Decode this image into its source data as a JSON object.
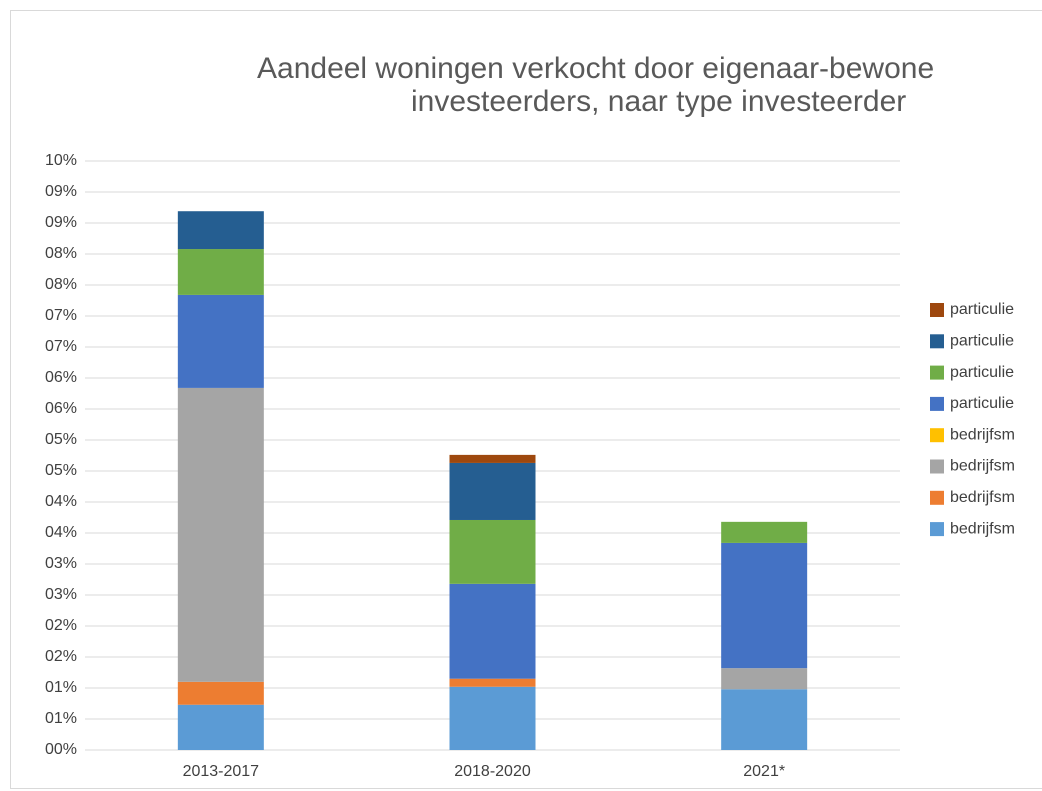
{
  "chart_data": {
    "type": "stacked-bar",
    "title": [
      "Aandeel woningen verkocht door eigenaar-bewone",
      "investeerders, naar type investeerder"
    ],
    "categories": [
      "2013-2017",
      "2018-2020",
      "2021*"
    ],
    "series": [
      {
        "name": "bedrijfsm",
        "color": "#5b9bd5",
        "values": [
          0.73,
          1.02,
          0.98
        ]
      },
      {
        "name": "bedrijfsm",
        "color": "#ed7d31",
        "values": [
          0.37,
          0.13,
          0
        ]
      },
      {
        "name": "bedrijfsm",
        "color": "#a5a5a5",
        "values": [
          4.74,
          0,
          0.34
        ]
      },
      {
        "name": "bedrijfsm",
        "color": "#ffc000",
        "values": [
          0,
          0,
          0
        ]
      },
      {
        "name": "particulie",
        "color": "#4472c4",
        "values": [
          1.5,
          1.53,
          2.02
        ]
      },
      {
        "name": "particulie",
        "color": "#70ad47",
        "values": [
          0.74,
          1.03,
          0.34
        ]
      },
      {
        "name": "particulie",
        "color": "#255e91",
        "values": [
          0.61,
          0.92,
          0
        ]
      },
      {
        "name": "particulie",
        "color": "#9e480e",
        "values": [
          0,
          0.13,
          0
        ]
      }
    ],
    "ylim": [
      0,
      9.5
    ],
    "yticks": [
      {
        "value": 0,
        "label": "00%"
      },
      {
        "value": 0.5,
        "label": "01%"
      },
      {
        "value": 1,
        "label": "01%"
      },
      {
        "value": 1.5,
        "label": "02%"
      },
      {
        "value": 2,
        "label": "02%"
      },
      {
        "value": 2.5,
        "label": "03%"
      },
      {
        "value": 3,
        "label": "03%"
      },
      {
        "value": 3.5,
        "label": "04%"
      },
      {
        "value": 4,
        "label": "04%"
      },
      {
        "value": 4.5,
        "label": "05%"
      },
      {
        "value": 5,
        "label": "05%"
      },
      {
        "value": 5.5,
        "label": "06%"
      },
      {
        "value": 6,
        "label": "06%"
      },
      {
        "value": 6.5,
        "label": "07%"
      },
      {
        "value": 7,
        "label": "07%"
      },
      {
        "value": 7.5,
        "label": "08%"
      },
      {
        "value": 8,
        "label": "08%"
      },
      {
        "value": 8.5,
        "label": "09%"
      },
      {
        "value": 9,
        "label": "09%"
      },
      {
        "value": 9.5,
        "label": "10%"
      }
    ],
    "grid": true,
    "legend": "right"
  }
}
